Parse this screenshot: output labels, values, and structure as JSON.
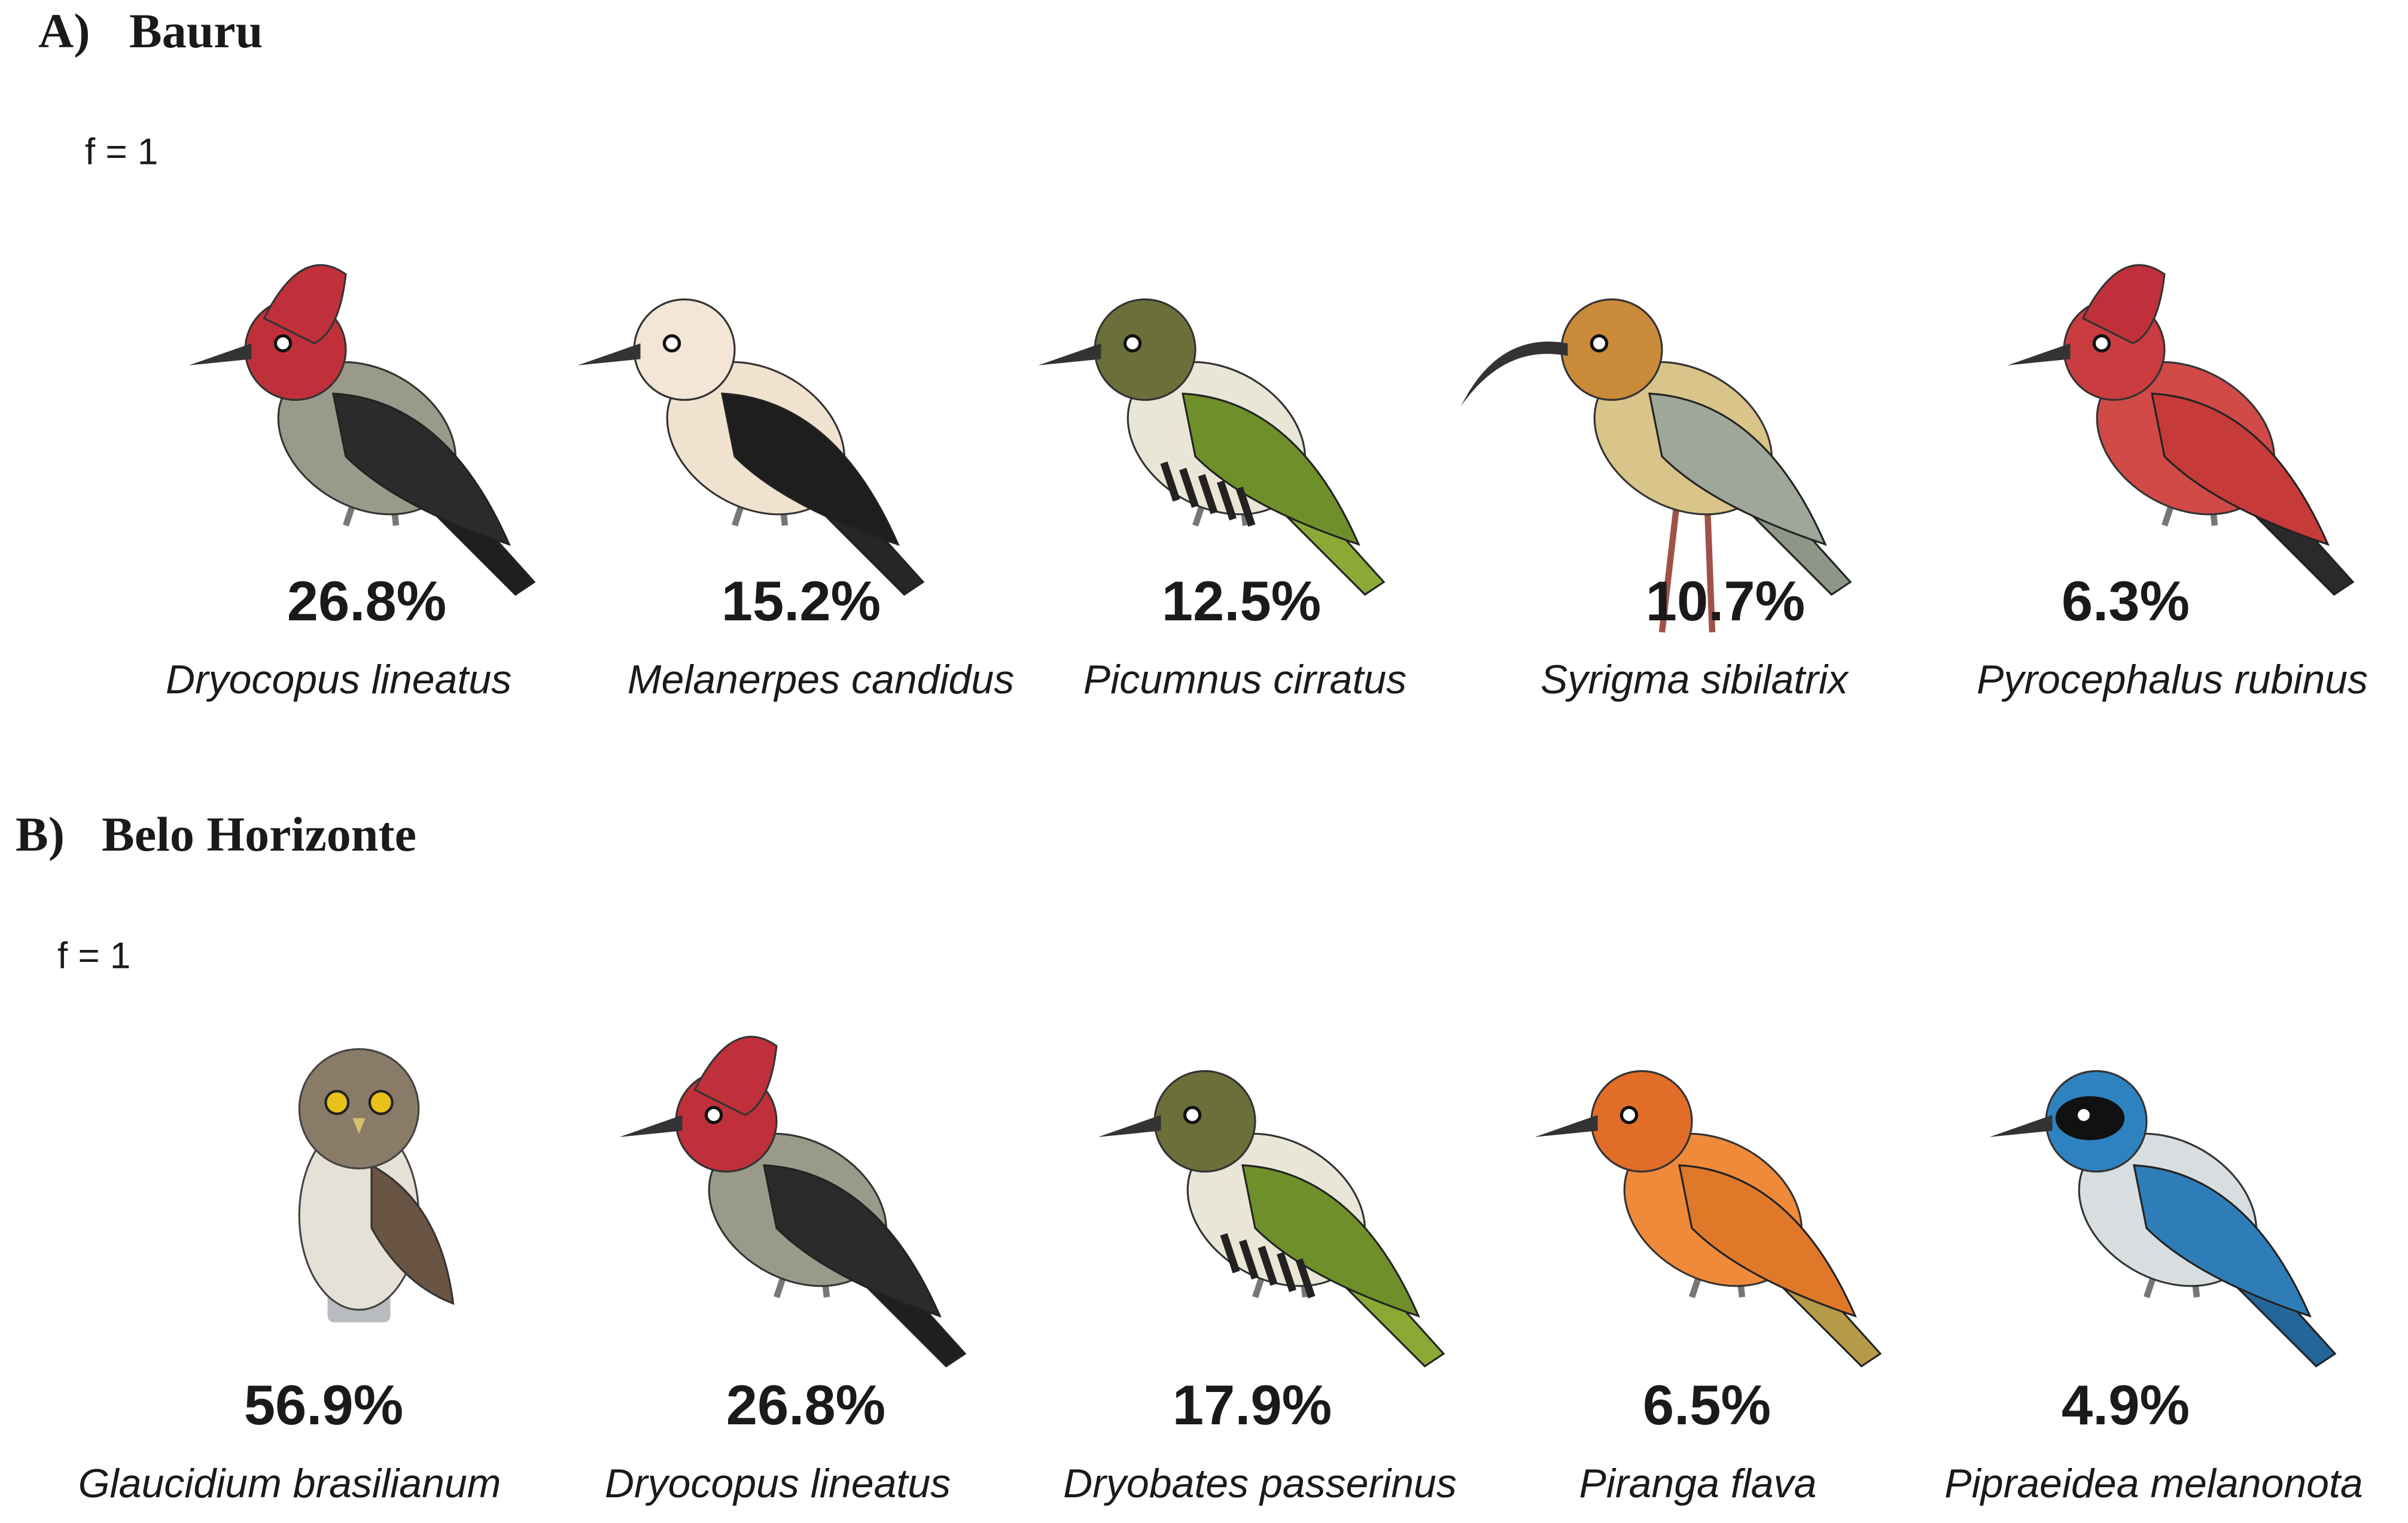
{
  "panels": [
    {
      "label": "A)",
      "title": "Bauru",
      "f_label": "f = 1",
      "items": [
        {
          "percent": "26.8%",
          "species": "Dryocopus lineatus"
        },
        {
          "percent": "15.2%",
          "species": "Melanerpes candidus"
        },
        {
          "percent": "12.5%",
          "species": "Picumnus cirratus"
        },
        {
          "percent": "10.7%",
          "species": "Syrigma sibilatrix"
        },
        {
          "percent": "6.3%",
          "species": "Pyrocephalus rubinus"
        }
      ]
    },
    {
      "label": "B)",
      "title": "Belo Horizonte",
      "f_label": "f = 1",
      "items": [
        {
          "percent": "56.9%",
          "species": "Glaucidium brasilianum"
        },
        {
          "percent": "26.8%",
          "species": "Dryocopus lineatus"
        },
        {
          "percent": "17.9%",
          "species": "Dryobates passerinus"
        },
        {
          "percent": "6.5%",
          "species": "Piranga flava"
        },
        {
          "percent": "4.9%",
          "species": "Pipraeidea melanonota"
        }
      ]
    }
  ]
}
